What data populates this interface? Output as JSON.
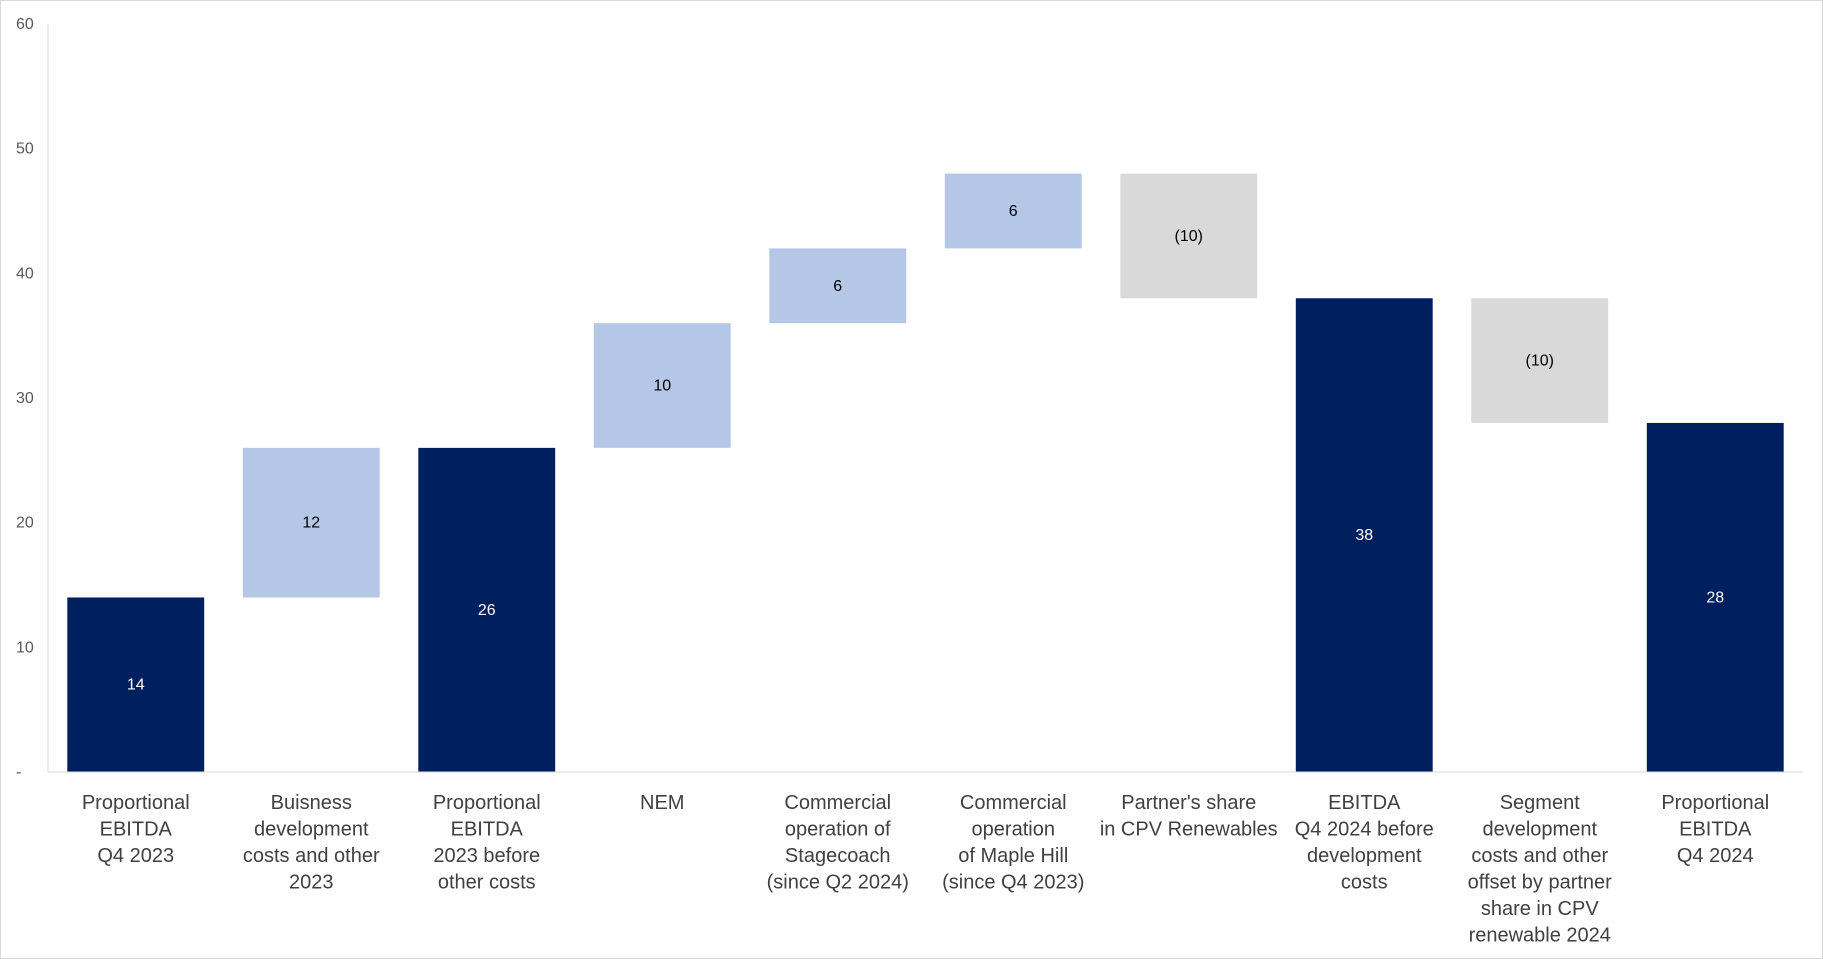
{
  "chart_data": {
    "type": "bar",
    "subtype": "waterfall",
    "title": "",
    "xlabel": "",
    "ylabel": "",
    "ylim": [
      0,
      60
    ],
    "yticks": [
      0,
      10,
      20,
      30,
      40,
      50,
      60
    ],
    "ytick_labels": [
      "-",
      "10",
      "20",
      "30",
      "40",
      "50",
      "60"
    ],
    "grid": false,
    "legend": "none",
    "categories": [
      [
        "Proportional",
        "EBITDA",
        "Q4 2023"
      ],
      [
        "Buisness",
        "development",
        "costs and other",
        "2023"
      ],
      [
        "Proportional",
        "EBITDA",
        "2023 before",
        "other costs"
      ],
      [
        "NEM"
      ],
      [
        "Commercial",
        "operation of",
        "Stagecoach",
        "(since Q2 2024)"
      ],
      [
        "Commercial",
        "operation",
        "of Maple Hill",
        "(since Q4 2023)"
      ],
      [
        "Partner's share",
        "in CPV Renewables"
      ],
      [
        "EBITDA",
        "Q4 2024 before",
        "development",
        "costs"
      ],
      [
        "Segment",
        "development",
        "costs and other",
        "offset by partner",
        "share in CPV",
        "renewable 2024"
      ],
      [
        "Proportional",
        "EBITDA",
        "Q4 2024"
      ]
    ],
    "bars": [
      {
        "kind": "total",
        "start": 0,
        "end": 14,
        "label": "14"
      },
      {
        "kind": "increase",
        "start": 14,
        "end": 26,
        "label": "12"
      },
      {
        "kind": "total",
        "start": 0,
        "end": 26,
        "label": "26"
      },
      {
        "kind": "increase",
        "start": 26,
        "end": 36,
        "label": "10"
      },
      {
        "kind": "increase",
        "start": 36,
        "end": 42,
        "label": "6"
      },
      {
        "kind": "increase",
        "start": 42,
        "end": 48,
        "label": "6"
      },
      {
        "kind": "decrease",
        "start": 48,
        "end": 38,
        "label": "(10)"
      },
      {
        "kind": "total",
        "start": 0,
        "end": 38,
        "label": "38"
      },
      {
        "kind": "decrease",
        "start": 38,
        "end": 28,
        "label": "(10)"
      },
      {
        "kind": "total",
        "start": 0,
        "end": 28,
        "label": "28"
      }
    ],
    "colors": {
      "total": "#001f5f",
      "increase": "#b4c7e7",
      "decrease": "#d9d9d9",
      "total_label": "#ffffff",
      "other_label": "#000000",
      "axis": "#d9d9d9"
    }
  }
}
